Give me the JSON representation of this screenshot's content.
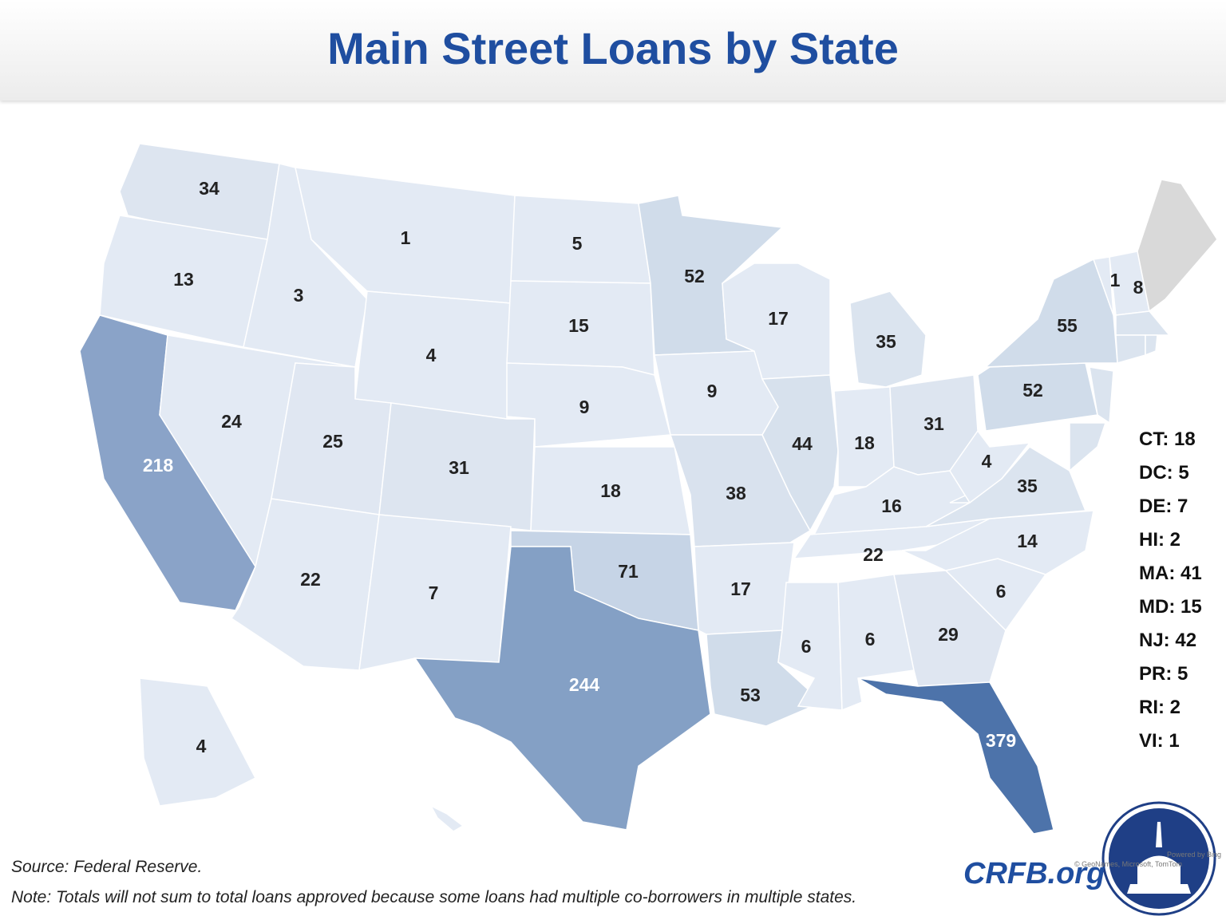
{
  "title": "Main Street Loans by State",
  "map": {
    "regions": [
      {
        "value": 34,
        "color": "#dde5f0"
      },
      {
        "value": 13,
        "color": "#e3eaf4"
      },
      {
        "value": 218,
        "color": "#8aa3c8",
        "label_color": "#ffffff"
      },
      {
        "value": 3,
        "color": "#e3eaf4"
      },
      {
        "value": 24,
        "color": "#e3eaf4"
      },
      {
        "value": 1,
        "color": "#e3eaf4"
      },
      {
        "value": 4,
        "color": "#e3eaf4"
      },
      {
        "value": 25,
        "color": "#e0e7f2"
      },
      {
        "value": 31,
        "color": "#dde5f0"
      },
      {
        "value": 22,
        "color": "#e3eaf4"
      },
      {
        "value": 7,
        "color": "#e3eaf4"
      },
      {
        "value": 5,
        "color": "#e3eaf4"
      },
      {
        "value": 15,
        "color": "#e3eaf4"
      },
      {
        "value": 9,
        "color": "#e3eaf4"
      },
      {
        "value": 18,
        "color": "#e3eaf4"
      },
      {
        "value": 71,
        "color": "#c6d4e6"
      },
      {
        "value": 244,
        "color": "#84a0c5",
        "label_color": "#ffffff"
      },
      {
        "value": 52,
        "color": "#d0dcea"
      },
      {
        "value": 9,
        "color": "#e3eaf4"
      },
      {
        "value": 38,
        "color": "#d9e2ee"
      },
      {
        "value": 17,
        "color": "#e3eaf4"
      },
      {
        "value": 53,
        "color": "#d0dcea"
      },
      {
        "value": 17,
        "color": "#e3eaf4"
      },
      {
        "value": 44,
        "color": "#d7e1ed"
      },
      {
        "value": 35,
        "color": "#dbe4ef"
      },
      {
        "value": 18,
        "color": "#e3eaf4"
      },
      {
        "value": 31,
        "color": "#dde5f0"
      },
      {
        "value": 16,
        "color": "#e3eaf4"
      },
      {
        "value": 22,
        "color": "#e3eaf4"
      },
      {
        "value": 6,
        "color": "#e3eaf4"
      },
      {
        "value": 6,
        "color": "#e3eaf4"
      },
      {
        "value": 29,
        "color": "#dfe6f1"
      },
      {
        "value": 379,
        "color": "#4d73aa",
        "label_color": "#ffffff"
      },
      {
        "value": 6,
        "color": "#e3eaf4"
      },
      {
        "value": 14,
        "color": "#e3eaf4"
      },
      {
        "value": 35,
        "color": "#dbe4ef"
      },
      {
        "value": 4,
        "color": "#e3eaf4"
      },
      {
        "value": 52,
        "color": "#d0dcea"
      },
      {
        "value": 55,
        "color": "#d0dcea"
      },
      {
        "value": 1,
        "color": "#e3eaf4"
      },
      {
        "value": 8,
        "color": "#e3eaf4"
      },
      {
        "value": null,
        "color": "#d9d9d9"
      },
      {
        "value": 4,
        "color": "#e3eaf4"
      }
    ]
  },
  "other_states": [
    "CT: 18",
    "DC: 5",
    "DE: 7",
    "HI: 2",
    "MA: 41",
    "MD: 15",
    "NJ: 42",
    "PR: 5",
    "RI: 2",
    "VI: 1"
  ],
  "source": "Source: Federal Reserve.",
  "note": "Note: Totals will not sum to total loans approved because some loans had multiple co-borrowers in multiple states.",
  "brand": "CRFB.org",
  "attribution": [
    "Powered by Bing",
    "© GeoNames, Microsoft, TomTom"
  ]
}
